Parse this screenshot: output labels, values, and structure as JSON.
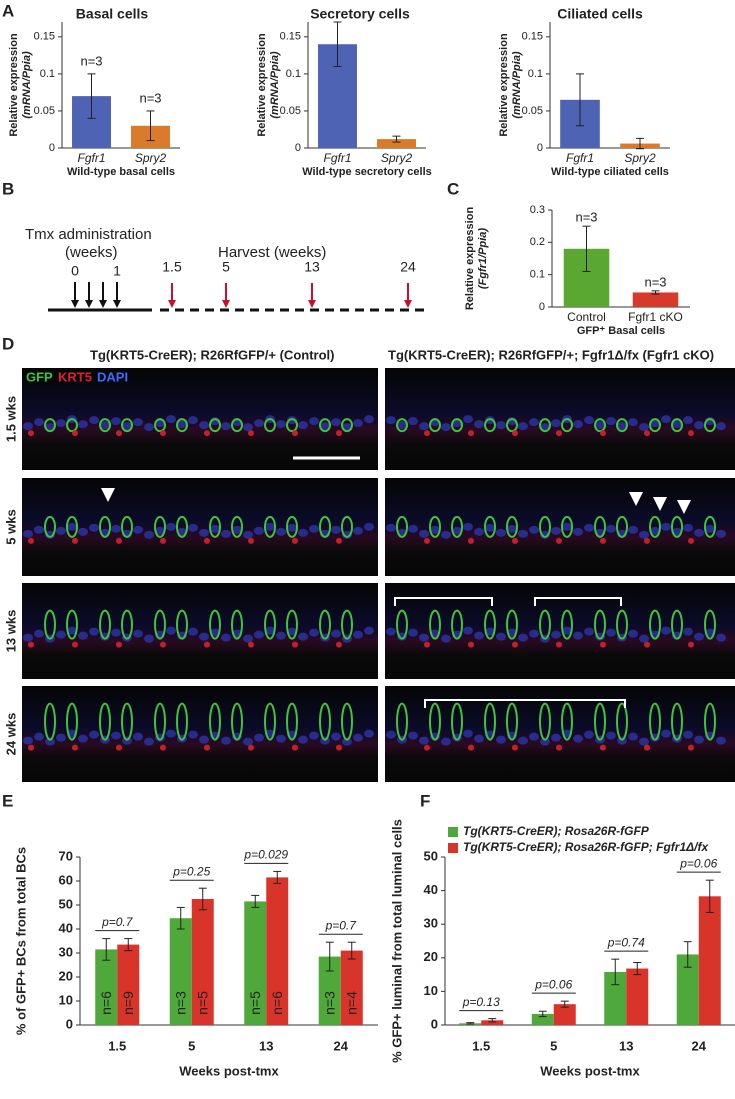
{
  "panel_letters": [
    "A",
    "B",
    "C",
    "D",
    "E",
    "F"
  ],
  "chart_data": [
    {
      "type": "bar",
      "title": "Basal cells",
      "ylabel": [
        "Relative expression",
        "(mRNA/Ppia)"
      ],
      "xlabel": "Wild-type basal cells",
      "categories": [
        "Fgfr1",
        "Spry2"
      ],
      "values": [
        0.07,
        0.03
      ],
      "errors": [
        0.03,
        0.02
      ],
      "colors": [
        "#4e63b4",
        "#d97b2a"
      ],
      "annotations": [
        "n=3",
        "n=3"
      ],
      "ylim": [
        0,
        0.17
      ],
      "yticks": [
        0,
        0.05,
        0.1,
        0.15
      ]
    },
    {
      "type": "bar",
      "title": "Secretory cells",
      "ylabel": [
        "Relative expression",
        "(mRNA/Ppia)"
      ],
      "xlabel": "Wild-type secretory cells",
      "categories": [
        "Fgfr1",
        "Spry2"
      ],
      "values": [
        0.14,
        0.012
      ],
      "errors": [
        0.03,
        0.004
      ],
      "colors": [
        "#4e63b4",
        "#d97b2a"
      ],
      "ylim": [
        0,
        0.17
      ],
      "yticks": [
        0,
        0.05,
        0.1,
        0.15
      ]
    },
    {
      "type": "bar",
      "title": "Ciliated cells",
      "ylabel": [
        "Relative expression",
        "(mRNA/Ppia)"
      ],
      "xlabel": "Wild-type ciliated cells",
      "categories": [
        "Fgfr1",
        "Spry2"
      ],
      "values": [
        0.065,
        0.006
      ],
      "errors": [
        0.035,
        0.007
      ],
      "colors": [
        "#4e63b4",
        "#d97b2a"
      ],
      "ylim": [
        0,
        0.17
      ],
      "yticks": [
        0,
        0.05,
        0.1,
        0.15
      ]
    },
    {
      "type": "bar",
      "ylabel": [
        "Relative expression",
        "(Fgfr1/Ppia)"
      ],
      "xlabel": "GFP⁺ Basal cells",
      "categories": [
        "Control",
        "Fgfr1 cKO"
      ],
      "values": [
        0.18,
        0.045
      ],
      "errors": [
        0.07,
        0.005
      ],
      "colors": [
        "#5aa832",
        "#d63a2b"
      ],
      "annotations": [
        "n=3",
        "n=3"
      ],
      "ylim": [
        0,
        0.3
      ],
      "yticks": [
        0,
        0.1,
        0.2,
        0.3
      ]
    },
    {
      "type": "bar",
      "ylabel": "% of GFP+ BCs from total BCs",
      "xlabel": "Weeks post-tmx",
      "categories": [
        "1.5",
        "5",
        "13",
        "24"
      ],
      "p_values": [
        "p=0.7",
        "p=0.25",
        "p=0.029",
        "p=0.7"
      ],
      "series": [
        {
          "color": "#4fa83a",
          "values": [
            31.5,
            44.5,
            51.5,
            28.5
          ],
          "errors": [
            4.5,
            4.5,
            2.5,
            6
          ],
          "labels": [
            "n=6",
            "n=3",
            "n=5",
            "n=3"
          ]
        },
        {
          "color": "#d8342a",
          "values": [
            33.5,
            52.5,
            61.5,
            31
          ],
          "errors": [
            2.5,
            4.5,
            2.5,
            3.5
          ],
          "labels": [
            "n=9",
            "n=5",
            "n=6",
            "n=4"
          ]
        }
      ],
      "ylim": [
        0,
        70
      ],
      "yticks": [
        0,
        10,
        20,
        30,
        40,
        50,
        60,
        70
      ]
    },
    {
      "type": "bar",
      "ylabel": "% GFP+ luminal from total luminal cells",
      "xlabel": "Weeks post-tmx",
      "categories": [
        "1.5",
        "5",
        "13",
        "24"
      ],
      "p_values": [
        "p=0.13",
        "p=0.06",
        "p=0.74",
        "p=0.06"
      ],
      "series": [
        {
          "name": "Tg(KRT5-CreER); Rosa26R-fGFP",
          "color": "#4fa83a",
          "values": [
            0.5,
            3.3,
            15.8,
            21
          ],
          "errors": [
            0.2,
            0.8,
            3.8,
            3.8
          ]
        },
        {
          "name": "Tg(KRT5-CreER); Rosa26R-fGFP; Fgfr1Δ/fx",
          "color": "#d8342a",
          "values": [
            1.4,
            6.2,
            16.8,
            38.3
          ],
          "errors": [
            0.5,
            0.9,
            1.8,
            4.8
          ]
        }
      ],
      "ylim": [
        0,
        50
      ],
      "yticks": [
        0,
        10,
        20,
        30,
        40,
        50
      ],
      "legend": "top-left"
    }
  ],
  "timeline": {
    "title": "Tmx administration",
    "subtitle": "(weeks)",
    "harvest_title": "Harvest (weeks)",
    "tmx_labels": [
      "0",
      "1"
    ],
    "harvest_labels": [
      "1.5",
      "5",
      "13",
      "24"
    ]
  },
  "images": {
    "headers": [
      "Tg(KRT5-CreER); R26RfGFP/+ (Control)",
      "Tg(KRT5-CreER); R26RfGFP/+; Fgfr1Δ/fx (Fgfr1 cKO)"
    ],
    "stains": [
      "GFP",
      "KRT5",
      "DAPI"
    ],
    "rows": [
      "1.5 wks",
      "5 wks",
      "13 wks",
      "24 wks"
    ]
  }
}
